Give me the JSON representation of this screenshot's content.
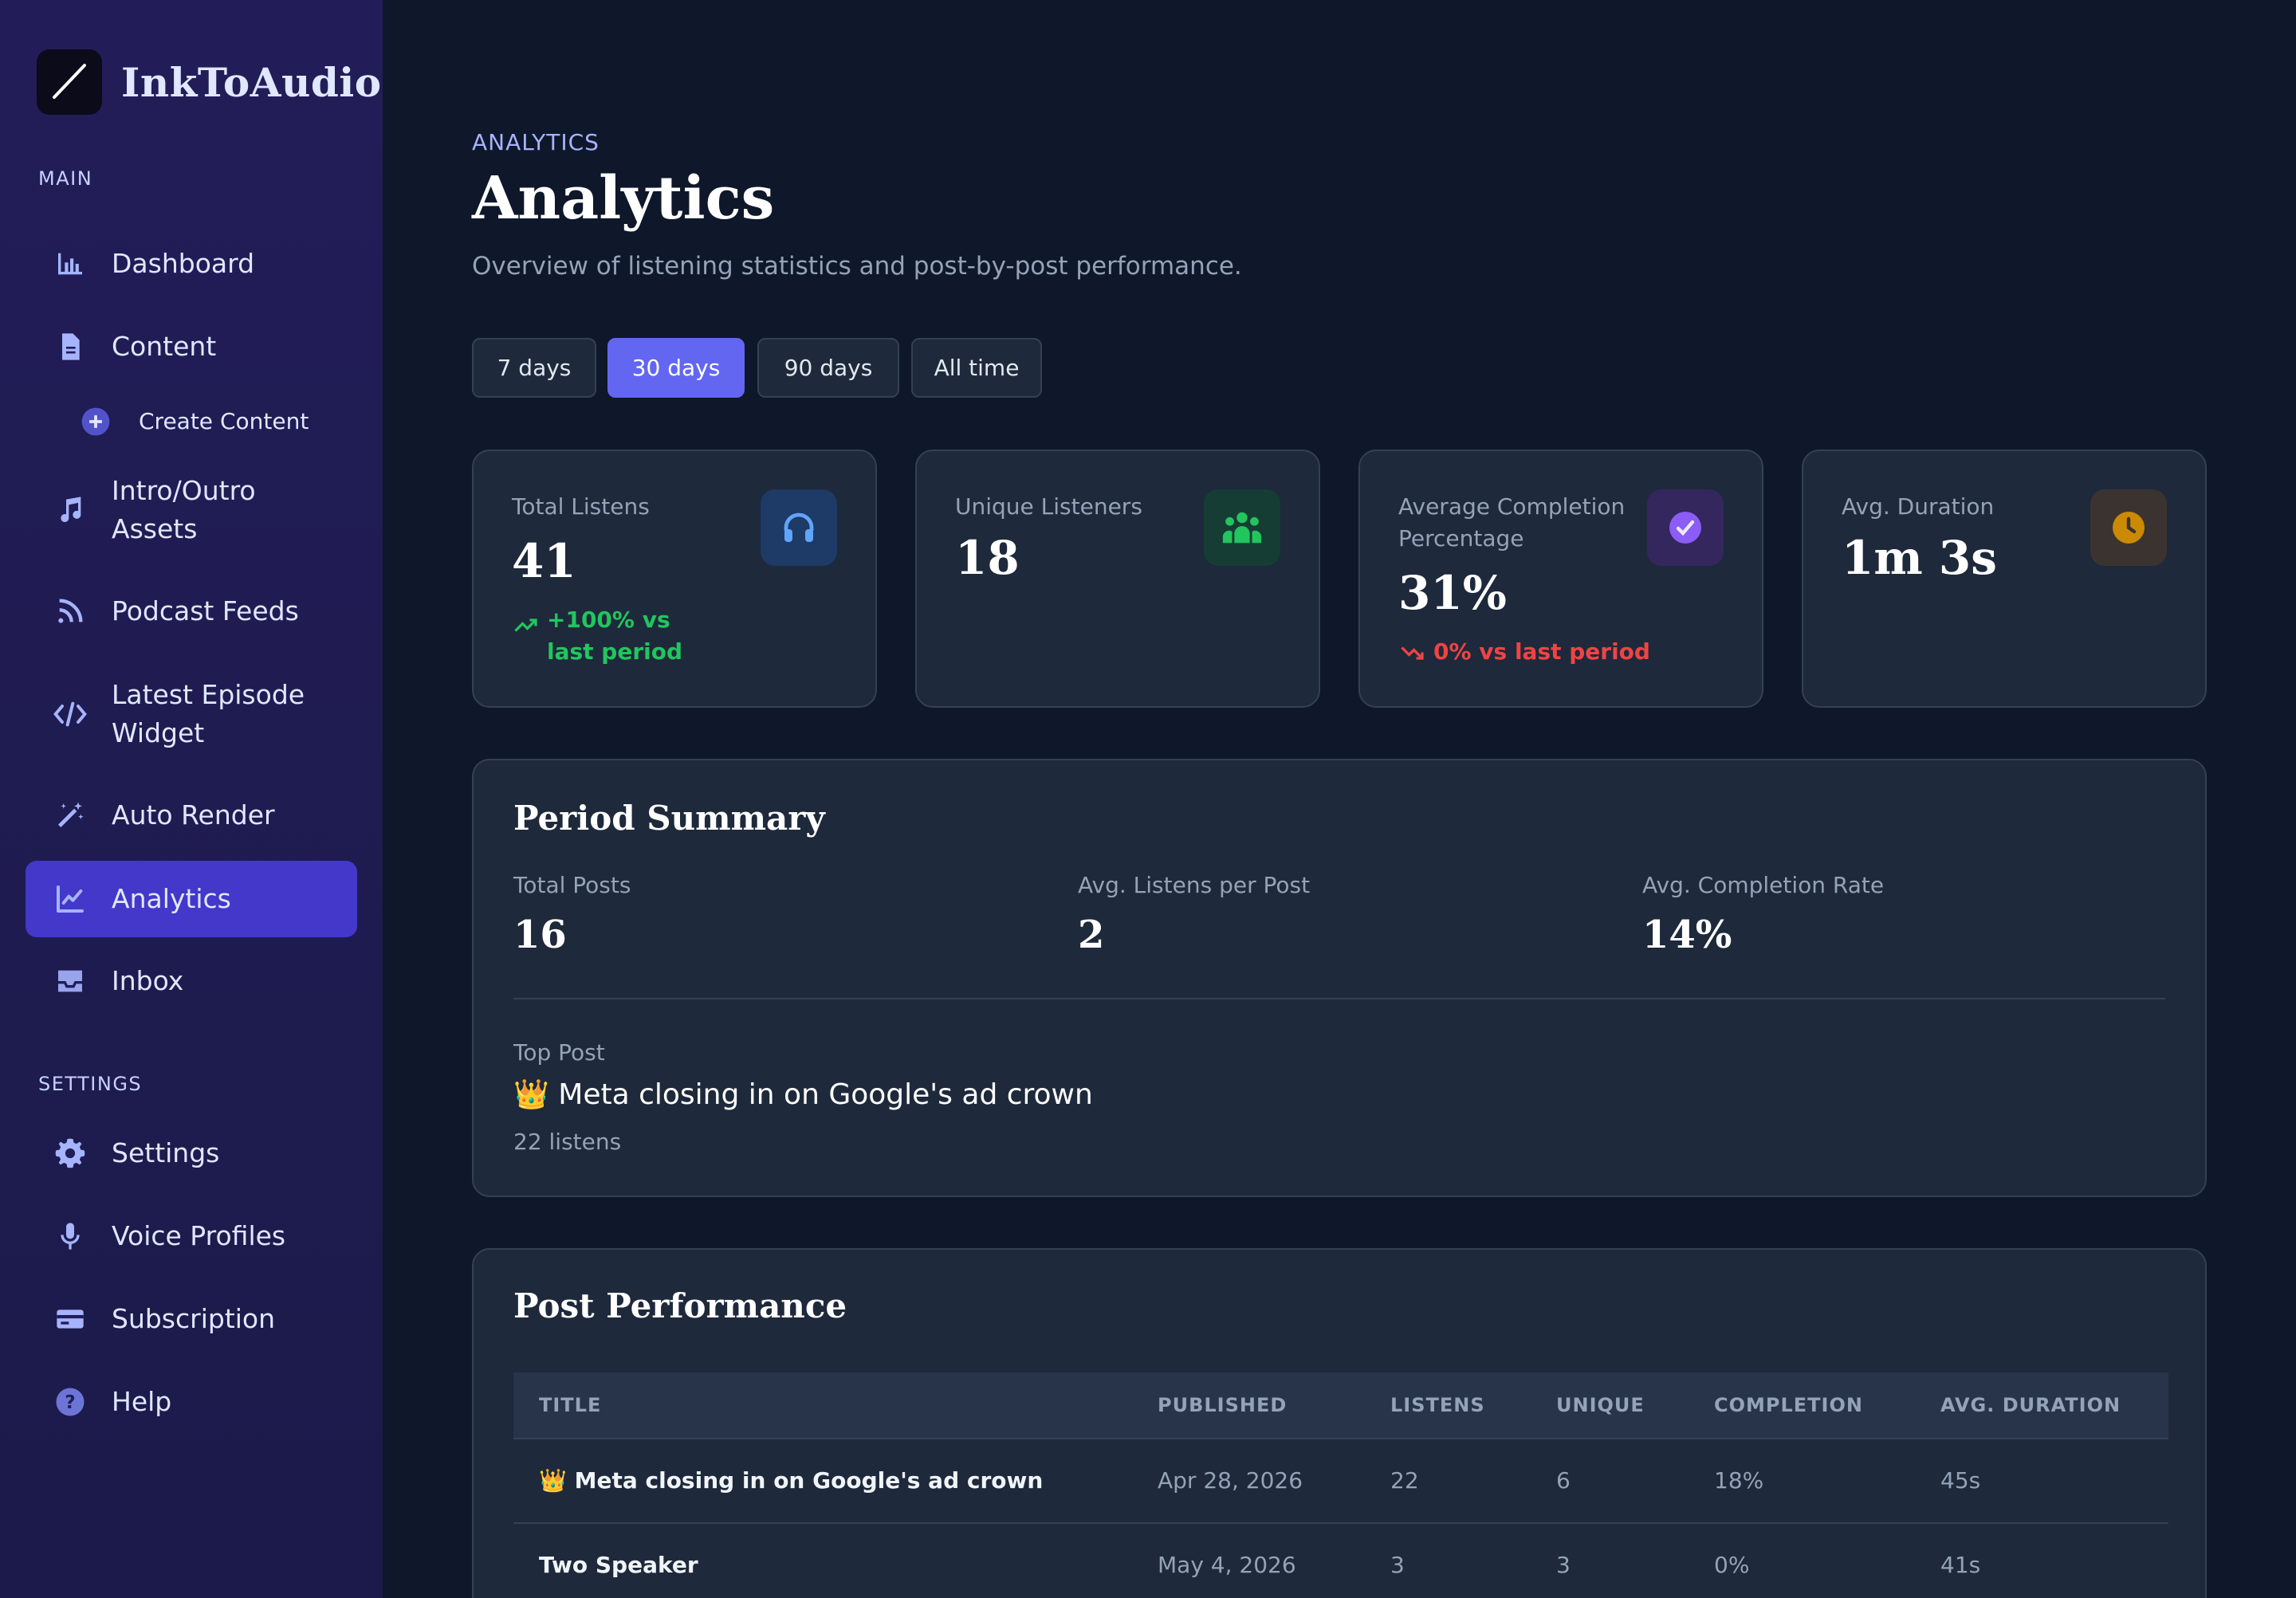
{
  "brand": {
    "name": "InkToAudio"
  },
  "sidebar": {
    "main_label": "MAIN",
    "settings_label": "SETTINGS",
    "items": [
      {
        "label": "Dashboard",
        "icon": "bar-chart-icon"
      },
      {
        "label": "Content",
        "icon": "document-icon"
      },
      {
        "label": "Create Content",
        "icon": "plus-circle-icon"
      },
      {
        "label": "Intro/Outro Assets",
        "icon": "music-note-icon"
      },
      {
        "label": "Podcast Feeds",
        "icon": "rss-icon"
      },
      {
        "label": "Latest Episode Widget",
        "icon": "code-icon"
      },
      {
        "label": "Auto Render",
        "icon": "magic-wand-icon"
      },
      {
        "label": "Analytics",
        "icon": "line-chart-icon",
        "active": true
      },
      {
        "label": "Inbox",
        "icon": "inbox-icon"
      }
    ],
    "settings_items": [
      {
        "label": "Settings",
        "icon": "gear-icon"
      },
      {
        "label": "Voice Profiles",
        "icon": "microphone-icon"
      },
      {
        "label": "Subscription",
        "icon": "credit-card-icon"
      },
      {
        "label": "Help",
        "icon": "help-icon"
      }
    ]
  },
  "header": {
    "crumb": "ANALYTICS",
    "title": "Analytics",
    "subtitle": "Overview of listening statistics and post-by-post performance."
  },
  "ranges": [
    {
      "label": "7 days"
    },
    {
      "label": "30 days",
      "active": true
    },
    {
      "label": "90 days"
    },
    {
      "label": "All time"
    }
  ],
  "stats": [
    {
      "label": "Total Listens",
      "value": "41",
      "delta": "+100% vs last period",
      "delta_dir": "up",
      "icon": "headphones-icon",
      "color": "#3b82f6"
    },
    {
      "label": "Unique Listeners",
      "value": "18",
      "icon": "users-icon",
      "color": "#22c55e"
    },
    {
      "label": "Average Completion Percentage",
      "value": "31%",
      "delta": "0% vs last period",
      "delta_dir": "down",
      "icon": "check-circle-icon",
      "color": "#8b5cf6"
    },
    {
      "label": "Avg. Duration",
      "value": "1m 3s",
      "icon": "clock-icon",
      "color": "#eab308"
    }
  ],
  "summary": {
    "title": "Period Summary",
    "cols": [
      {
        "label": "Total Posts",
        "value": "16"
      },
      {
        "label": "Avg. Listens per Post",
        "value": "2"
      },
      {
        "label": "Avg. Completion Rate",
        "value": "14%"
      }
    ],
    "top_label": "Top Post",
    "top_title": "👑 Meta closing in on Google's ad crown",
    "top_listens": "22 listens"
  },
  "performance": {
    "title": "Post Performance",
    "columns": [
      "TITLE",
      "PUBLISHED",
      "LISTENS",
      "UNIQUE",
      "COMPLETION",
      "AVG. DURATION"
    ],
    "rows": [
      {
        "title": "👑 Meta closing in on Google's ad crown",
        "published": "Apr 28, 2026",
        "listens": "22",
        "unique": "6",
        "completion": "18%",
        "avg_duration": "45s"
      },
      {
        "title": "Two Speaker",
        "published": "May 4, 2026",
        "listens": "3",
        "unique": "3",
        "completion": "0%",
        "avg_duration": "41s"
      }
    ]
  }
}
